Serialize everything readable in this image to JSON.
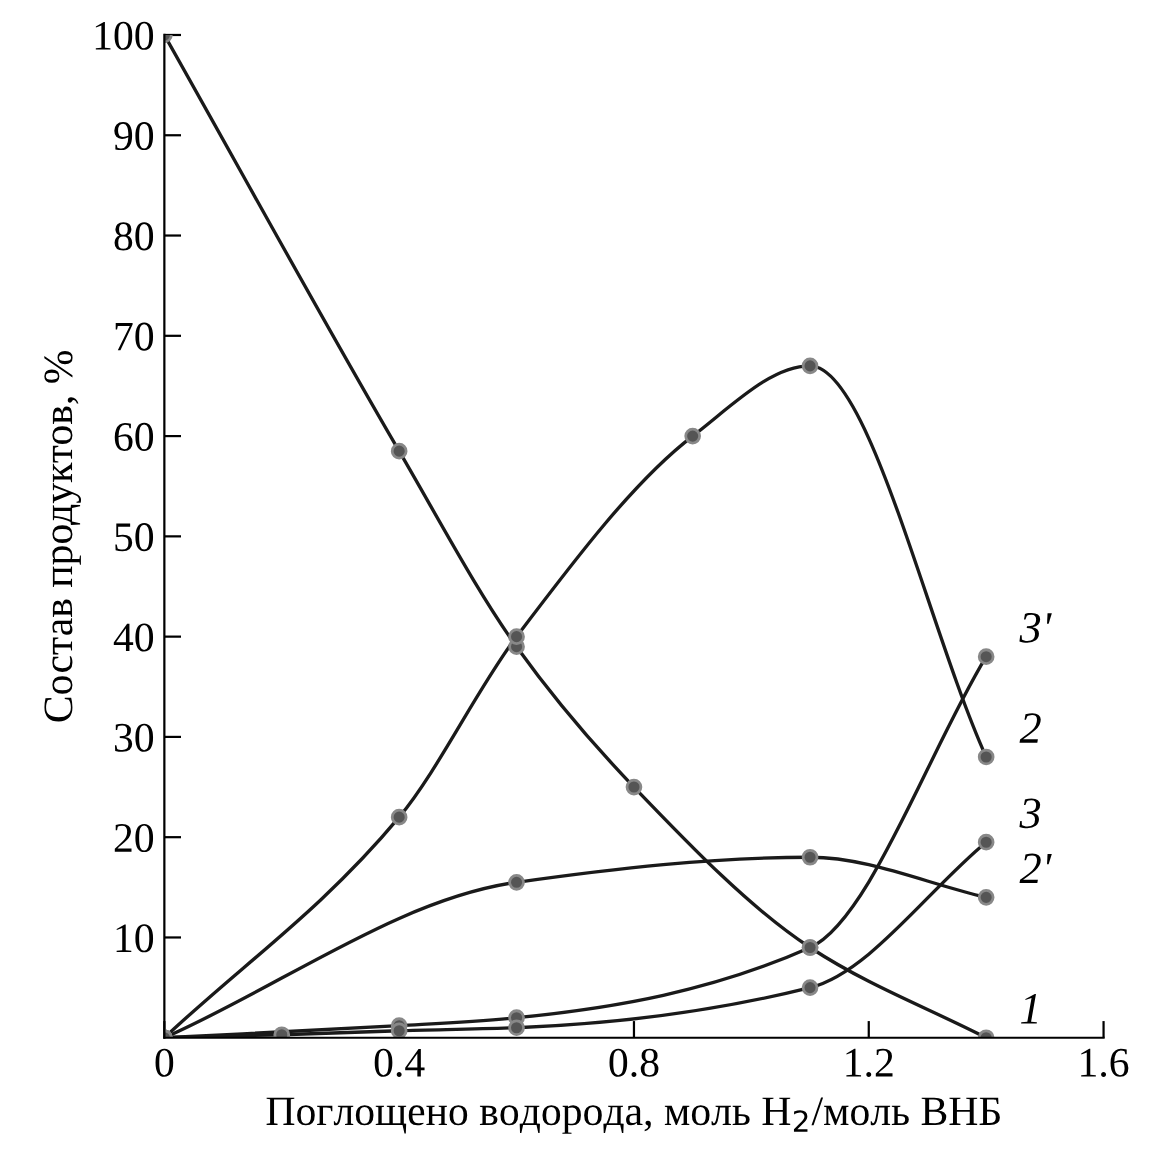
{
  "chart_data": {
    "type": "line",
    "xlabel": "Поглощено водорода, моль H$_{2}$/моль ВНБ",
    "ylabel": "Состав продуктов, %",
    "xlim": [
      0,
      1.6
    ],
    "ylim": [
      0,
      100
    ],
    "xticks": [
      0,
      0.4,
      0.8,
      1.2,
      1.6
    ],
    "yticks": [
      10,
      20,
      30,
      40,
      50,
      60,
      70,
      80,
      90,
      100
    ],
    "marker": "circle",
    "line_style": "solid",
    "grid": false,
    "legend": false,
    "series": [
      {
        "name": "1",
        "color": "#1a1a1a",
        "x": [
          0,
          0.4,
          0.6,
          0.8,
          1.1,
          1.4
        ],
        "values": [
          100,
          58.5,
          39,
          25,
          9,
          0
        ]
      },
      {
        "name": "2",
        "color": "#1a1a1a",
        "x": [
          0,
          0.4,
          0.6,
          0.9,
          1.1,
          1.4
        ],
        "values": [
          0,
          22,
          40,
          60,
          67,
          28
        ]
      },
      {
        "name": "2'",
        "color": "#1a1a1a",
        "x": [
          0,
          0.6,
          1.1,
          1.4
        ],
        "values": [
          0,
          15.5,
          18,
          14
        ]
      },
      {
        "name": "3'",
        "color": "#1a1a1a",
        "x": [
          0,
          0.4,
          0.6,
          1.1,
          1.4
        ],
        "values": [
          0,
          1.2,
          2,
          9,
          38
        ]
      },
      {
        "name": "3",
        "color": "#1a1a1a",
        "x": [
          0,
          0.2,
          0.4,
          0.6,
          1.1,
          1.4
        ],
        "values": [
          0,
          0.3,
          0.7,
          1,
          5,
          19.5
        ]
      }
    ]
  }
}
